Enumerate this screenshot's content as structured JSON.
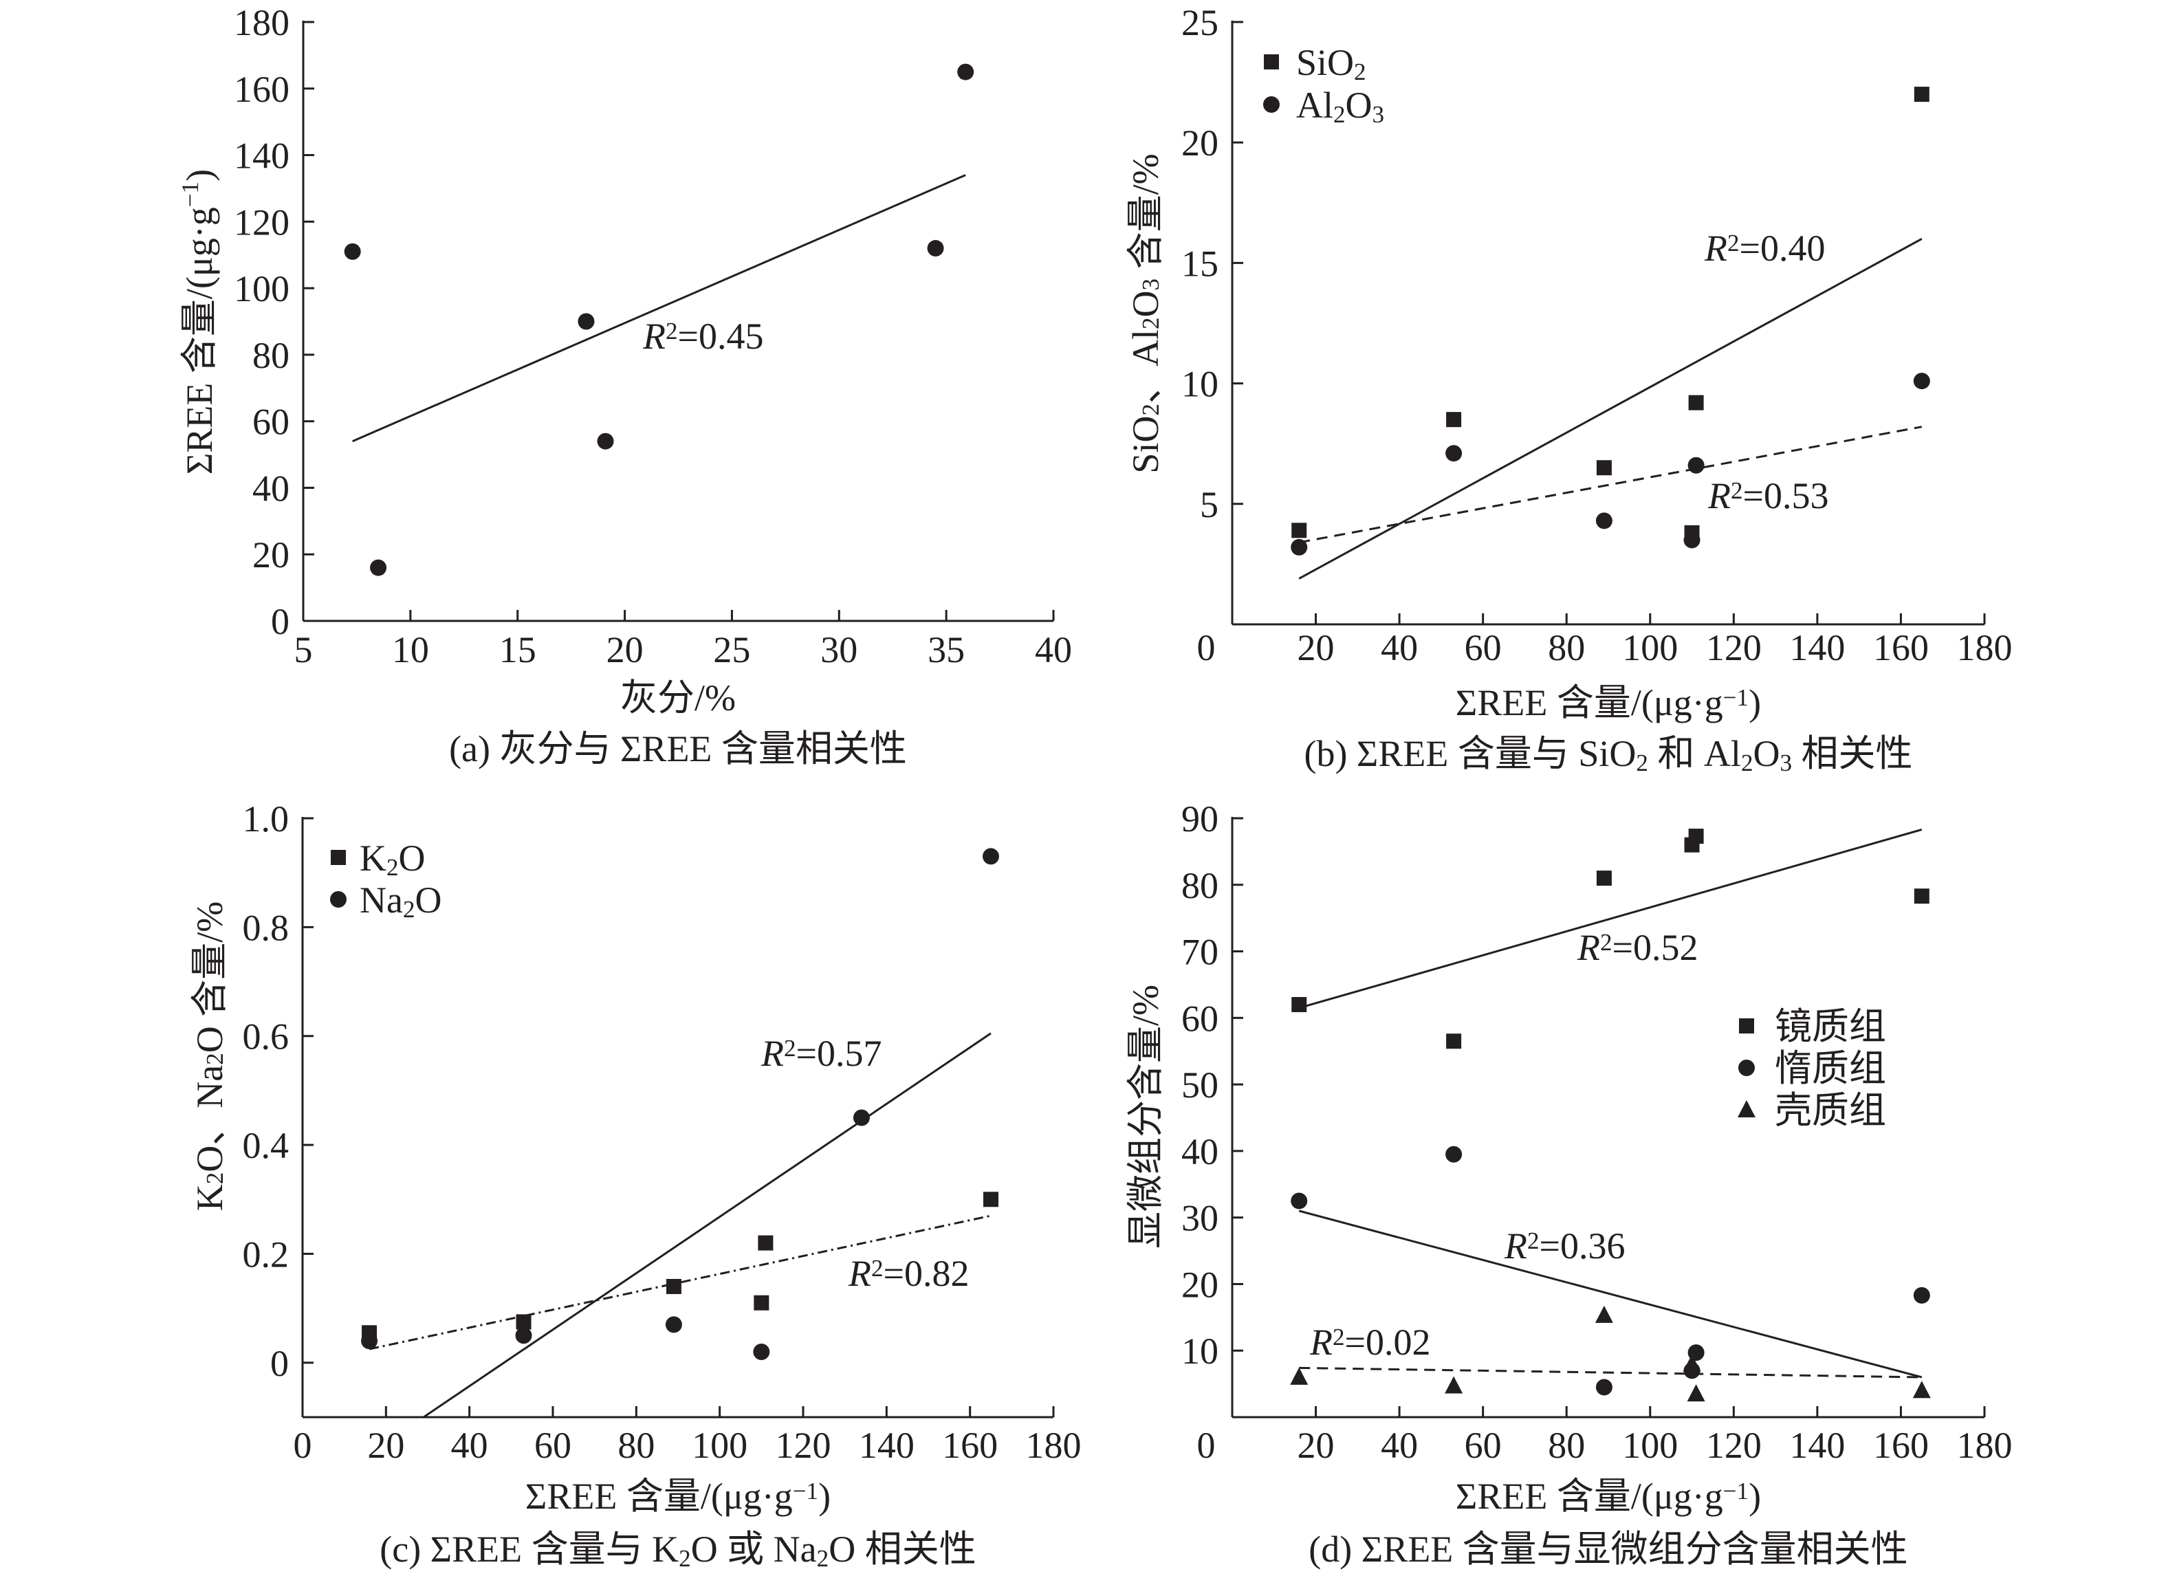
{
  "chart_data": [
    {
      "id": "a",
      "type": "scatter",
      "title": "(a) 灰分与 ΣREE 含量相关性",
      "xlabel": "灰分/%",
      "ylabel": "ΣREE 含量/(μg·g^{−1})",
      "xlim": [
        5,
        40
      ],
      "ylim": [
        0,
        180
      ],
      "xticks": [
        5,
        10,
        15,
        20,
        25,
        30,
        35,
        40
      ],
      "yticks": [
        0,
        20,
        40,
        60,
        80,
        100,
        120,
        140,
        160,
        180
      ],
      "grid": false,
      "series": [
        {
          "name": "ΣREE",
          "marker": "circle",
          "legend": false,
          "points": [
            [
              7.3,
              111
            ],
            [
              8.5,
              16
            ],
            [
              18.2,
              90
            ],
            [
              19.1,
              54
            ],
            [
              34.5,
              112
            ],
            [
              35.9,
              165
            ]
          ]
        }
      ],
      "fits": [
        {
          "series": "ΣREE",
          "style": "solid",
          "from": [
            7.3,
            54
          ],
          "to": [
            35.9,
            134
          ],
          "label": "R^{2}=0.45"
        }
      ]
    },
    {
      "id": "b",
      "type": "scatter",
      "title": "(b) ΣREE 含量与 SiO_{2} 和 Al_{2}O_{3} 相关性",
      "xlabel": "ΣREE 含量/(μg·g^{−1})",
      "ylabel": "SiO_{2}、Al_{2}O_{3} 含量/%",
      "xlim": [
        0,
        180
      ],
      "ylim": [
        0,
        25
      ],
      "xticks": [
        0,
        20,
        40,
        60,
        80,
        100,
        120,
        140,
        160,
        180
      ],
      "yticks": [
        5,
        10,
        15,
        20,
        25
      ],
      "origin_label": "0",
      "grid": false,
      "legend_position": "top-left",
      "series": [
        {
          "name": "SiO_{2}",
          "marker": "square",
          "legend": true,
          "points": [
            [
              16,
              3.9
            ],
            [
              53,
              8.5
            ],
            [
              89,
              6.5
            ],
            [
              110,
              3.8
            ],
            [
              111,
              9.2
            ],
            [
              165,
              22
            ]
          ]
        },
        {
          "name": "Al_{2}O_{3}",
          "marker": "circle",
          "legend": true,
          "points": [
            [
              16,
              3.2
            ],
            [
              53,
              7.1
            ],
            [
              89,
              4.3
            ],
            [
              110,
              3.5
            ],
            [
              111,
              6.6
            ],
            [
              165,
              10.1
            ]
          ]
        }
      ],
      "fits": [
        {
          "series": "SiO_{2}",
          "style": "solid",
          "from": [
            16,
            1.9
          ],
          "to": [
            165,
            16
          ],
          "label": "R^{2}=0.40"
        },
        {
          "series": "Al_{2}O_{3}",
          "style": "dashed",
          "from": [
            16,
            3.4
          ],
          "to": [
            165,
            8.2
          ],
          "label": "R^{2}=0.53"
        }
      ]
    },
    {
      "id": "c",
      "type": "scatter",
      "title": "(c) ΣREE 含量与 K_{2}O 或 Na_{2}O 相关性",
      "xlabel": "ΣREE 含量/(μg·g^{−1})",
      "ylabel": "K_{2}O、Na_{2}O 含量/%",
      "xlim": [
        0,
        180
      ],
      "ylim": [
        -0.1,
        1.0
      ],
      "xticks": [
        0,
        20,
        40,
        60,
        80,
        100,
        120,
        140,
        160,
        180
      ],
      "yticks": [
        0,
        0.2,
        0.4,
        0.6,
        0.8,
        1.0
      ],
      "ytick_labels": [
        "0",
        "0.2",
        "0.4",
        "0.6",
        "0.8",
        "1.0"
      ],
      "grid": false,
      "legend_position": "top-left",
      "series": [
        {
          "name": "K_{2}O",
          "marker": "square",
          "legend": true,
          "points": [
            [
              16,
              0.055
            ],
            [
              53,
              0.075
            ],
            [
              89,
              0.14
            ],
            [
              110,
              0.11
            ],
            [
              111,
              0.22
            ],
            [
              165,
              0.3
            ]
          ]
        },
        {
          "name": "Na_{2}O",
          "marker": "circle",
          "legend": true,
          "points": [
            [
              16,
              0.04
            ],
            [
              53,
              0.05
            ],
            [
              89,
              0.07
            ],
            [
              110,
              0.02
            ],
            [
              134,
              0.45
            ],
            [
              165,
              0.93
            ]
          ]
        }
      ],
      "fits": [
        {
          "series": "Na_{2}O",
          "style": "solid",
          "from": [
            29,
            -0.1
          ],
          "to": [
            165,
            0.605
          ],
          "label": "R^{2}=0.57"
        },
        {
          "series": "K_{2}O",
          "style": "dashdot",
          "from": [
            16,
            0.025
          ],
          "to": [
            165,
            0.27
          ],
          "label": "R^{2}=0.82"
        }
      ]
    },
    {
      "id": "d",
      "type": "scatter",
      "title": "(d) ΣREE 含量与显微组分含量相关性",
      "xlabel": "ΣREE 含量/(μg·g^{−1})",
      "ylabel": "显微组分含量/%",
      "xlim": [
        0,
        180
      ],
      "ylim": [
        0,
        90
      ],
      "xticks": [
        0,
        20,
        40,
        60,
        80,
        100,
        120,
        140,
        160,
        180
      ],
      "yticks": [
        10,
        20,
        30,
        40,
        50,
        60,
        70,
        80,
        90
      ],
      "origin_label": "0",
      "grid": false,
      "legend_position": "center-right",
      "series": [
        {
          "name": "镜质组",
          "marker": "square",
          "legend": true,
          "points": [
            [
              16,
              62
            ],
            [
              53,
              56.5
            ],
            [
              89,
              81
            ],
            [
              110,
              86
            ],
            [
              111,
              87.3
            ],
            [
              165,
              78.3
            ]
          ]
        },
        {
          "name": "惰质组",
          "marker": "circle",
          "legend": true,
          "points": [
            [
              16,
              32.5
            ],
            [
              53,
              39.5
            ],
            [
              89,
              4.5
            ],
            [
              110,
              7
            ],
            [
              111,
              9.7
            ],
            [
              165,
              18.3
            ]
          ]
        },
        {
          "name": "壳质组",
          "marker": "triangle",
          "legend": true,
          "points": [
            [
              16,
              6
            ],
            [
              53,
              4.7
            ],
            [
              89,
              15.3
            ],
            [
              110,
              8
            ],
            [
              111,
              3.5
            ],
            [
              165,
              4
            ]
          ]
        }
      ],
      "fits": [
        {
          "series": "镜质组",
          "style": "solid",
          "from": [
            16,
            61.5
          ],
          "to": [
            165,
            88.3
          ],
          "label": "R^{2}=0.52"
        },
        {
          "series": "惰质组",
          "style": "solid",
          "from": [
            16,
            31
          ],
          "to": [
            165,
            6
          ],
          "label": "R^{2}=0.36"
        },
        {
          "series": "壳质组",
          "style": "dashed",
          "from": [
            16,
            7.4
          ],
          "to": [
            165,
            6
          ],
          "label": "R^{2}=0.02"
        }
      ]
    }
  ]
}
